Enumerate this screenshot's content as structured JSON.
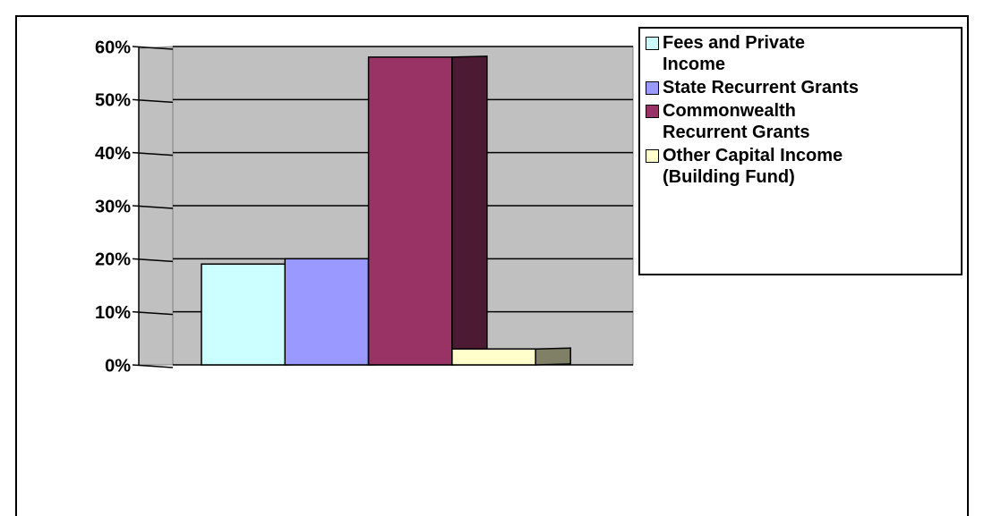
{
  "chart_data": {
    "type": "bar",
    "categories": [
      null
    ],
    "series": [
      {
        "name": "Fees and Private Income",
        "color": "#ccffff",
        "values": [
          19
        ]
      },
      {
        "name": "State Recurrent Grants",
        "color": "#9999ff",
        "values": [
          20
        ]
      },
      {
        "name": "Commonwealth Recurrent Grants",
        "color": "#993366",
        "values": [
          58
        ]
      },
      {
        "name": "Other Capital Income (Building Fund)",
        "color": "#ffffcc",
        "values": [
          3
        ]
      }
    ],
    "ylim": [
      0,
      60
    ],
    "yticks": [
      {
        "value": 0,
        "label": "0%"
      },
      {
        "value": 10,
        "label": "10%"
      },
      {
        "value": 20,
        "label": "20%"
      },
      {
        "value": 30,
        "label": "30%"
      },
      {
        "value": 40,
        "label": "40%"
      },
      {
        "value": 50,
        "label": "50%"
      },
      {
        "value": 60,
        "label": "60%"
      }
    ],
    "grid": true,
    "legend": "right"
  }
}
